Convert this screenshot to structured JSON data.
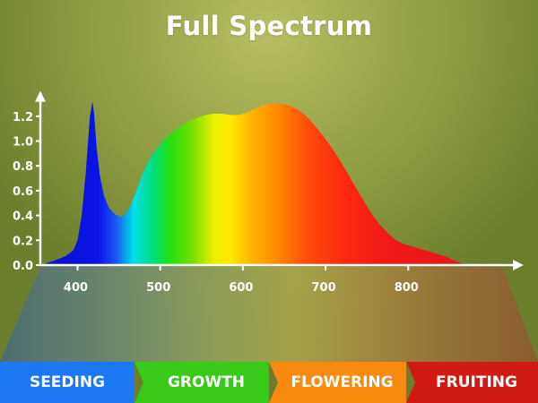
{
  "title": "Full Spectrum",
  "colors": {
    "axis": "#ffffff",
    "text": "#ffffff"
  },
  "chart_data": {
    "type": "area",
    "title": "Full Spectrum",
    "xlabel": "",
    "ylabel": "",
    "xlim": [
      355,
      870
    ],
    "ylim": [
      0,
      1.3
    ],
    "x_ticks": [
      400,
      500,
      600,
      700,
      800
    ],
    "y_ticks": [
      0.0,
      0.2,
      0.4,
      0.6,
      0.8,
      1.0,
      1.2
    ],
    "y_tick_labels": [
      "0.0",
      "0.2",
      "0.4",
      "0.6",
      "0.8",
      "1.0",
      "1.2"
    ],
    "grid": false,
    "fill": "rainbow gradient by wavelength",
    "series": [
      {
        "x": [
          355,
          370,
          385,
          395,
          400,
          405,
          410,
          415,
          418,
          420,
          423,
          427,
          432,
          438,
          445,
          452,
          458,
          463,
          470,
          478,
          485,
          495,
          505,
          515,
          525,
          535,
          545,
          555,
          565,
          575,
          585,
          595,
          605,
          615,
          625,
          635,
          645,
          655,
          665,
          675,
          685,
          695,
          705,
          715,
          725,
          735,
          745,
          755,
          765,
          775,
          785,
          795,
          805,
          815,
          825,
          835,
          845,
          855,
          862,
          868
        ],
        "y": [
          0.0,
          0.03,
          0.07,
          0.12,
          0.2,
          0.4,
          0.75,
          1.2,
          1.32,
          1.22,
          0.95,
          0.72,
          0.56,
          0.46,
          0.41,
          0.39,
          0.41,
          0.46,
          0.58,
          0.72,
          0.83,
          0.93,
          1.01,
          1.07,
          1.12,
          1.16,
          1.19,
          1.21,
          1.22,
          1.22,
          1.21,
          1.21,
          1.23,
          1.26,
          1.29,
          1.3,
          1.3,
          1.29,
          1.26,
          1.21,
          1.14,
          1.06,
          0.97,
          0.87,
          0.76,
          0.64,
          0.53,
          0.42,
          0.33,
          0.26,
          0.2,
          0.17,
          0.15,
          0.13,
          0.11,
          0.09,
          0.07,
          0.04,
          0.02,
          0.0
        ]
      }
    ]
  },
  "stages": [
    {
      "label": "SEEDING",
      "color": "#1b78f2"
    },
    {
      "label": "GROWTH",
      "color": "#38c91a"
    },
    {
      "label": "FLOWERING",
      "color": "#f78a0f"
    },
    {
      "label": "FRUITING",
      "color": "#d01a13"
    }
  ]
}
